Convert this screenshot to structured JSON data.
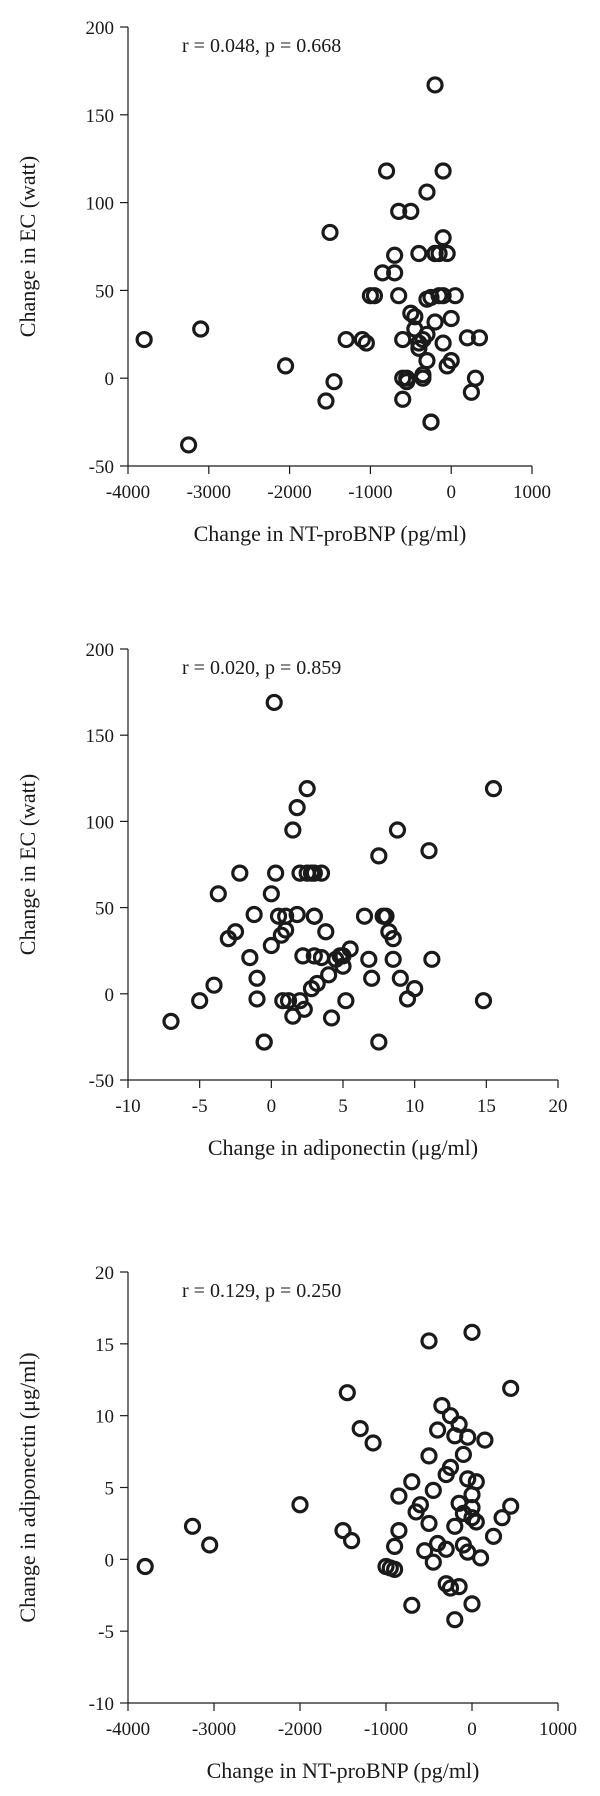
{
  "chart_data": [
    {
      "type": "scatter",
      "annotation": "r = 0.048, p = 0.668",
      "xlabel": "Change in NT-proBNP (pg/ml)",
      "ylabel": "Change in EC (watt)",
      "xlim": [
        -4000,
        1000
      ],
      "ylim": [
        -50,
        200
      ],
      "xticks": [
        -4000,
        -3000,
        -2000,
        -1000,
        0,
        1000
      ],
      "yticks": [
        -50,
        0,
        50,
        100,
        150,
        200
      ],
      "grid": false,
      "series": [
        {
          "x": [
            -3800,
            -3250,
            -3100,
            -2050,
            -1550,
            -1500,
            -1450,
            -1300,
            -1100,
            -1050,
            -1000,
            -950,
            -850,
            -800,
            -700,
            -700,
            -650,
            -650,
            -600,
            -600,
            -550,
            -550,
            -500,
            -450,
            -400,
            -400,
            -350,
            -350,
            -300,
            -300,
            -300,
            -250,
            -250,
            -200,
            -200,
            -200,
            -150,
            -150,
            -100,
            -100,
            -100,
            -100,
            -50,
            -50,
            0,
            0,
            50,
            200,
            250,
            300,
            350,
            -400,
            -300,
            -450,
            -350,
            -600,
            -500,
            -250,
            -200
          ],
          "y": [
            22,
            -38,
            28,
            7,
            -13,
            83,
            -2,
            22,
            22,
            20,
            47,
            47,
            60,
            118,
            70,
            60,
            95,
            47,
            22,
            0,
            0,
            -2,
            95,
            35,
            20,
            71,
            22,
            0,
            106,
            45,
            25,
            -25,
            -25,
            167,
            71,
            32,
            47,
            71,
            80,
            118,
            47,
            20,
            7,
            71,
            34,
            10,
            47,
            23,
            -8,
            0,
            23,
            17,
            10,
            28,
            2,
            -12,
            37,
            46,
            71
          ]
        }
      ]
    },
    {
      "type": "scatter",
      "annotation": "r = 0.020, p = 0.859",
      "xlabel": "Change in adiponectin (μg/ml)",
      "ylabel": "Change in EC (watt)",
      "xlim": [
        -10,
        20
      ],
      "ylim": [
        -50,
        200
      ],
      "xticks": [
        -10,
        -5,
        0,
        5,
        10,
        15,
        20
      ],
      "yticks": [
        -50,
        0,
        50,
        100,
        150,
        200
      ],
      "grid": false,
      "series": [
        {
          "x": [
            -7,
            -5,
            -4,
            -3.7,
            -3,
            -2.5,
            -2.2,
            -1.5,
            -1.2,
            -1,
            -1,
            -0.5,
            -0.5,
            0,
            0,
            0.2,
            0.3,
            0.5,
            0.7,
            0.8,
            1,
            1,
            1.2,
            1.5,
            1.5,
            1.8,
            1.8,
            2,
            2,
            2.2,
            2.3,
            2.5,
            2.5,
            2.8,
            2.8,
            3,
            3,
            3,
            3,
            3.2,
            3.5,
            3.5,
            3.8,
            4,
            4.2,
            4.5,
            4.8,
            5,
            5,
            5.2,
            5.5,
            6.5,
            6.8,
            7,
            7.5,
            7.5,
            7.8,
            8,
            8.2,
            8.5,
            8.5,
            8.8,
            9,
            9.5,
            10,
            11,
            11.2,
            14.8,
            15.5
          ],
          "y": [
            -16,
            -4,
            5,
            58,
            32,
            36,
            70,
            21,
            46,
            9,
            -3,
            -28,
            -28,
            58,
            28,
            169,
            70,
            45,
            34,
            -4,
            37,
            45,
            -4,
            -13,
            95,
            108,
            46,
            -4,
            70,
            22,
            -9,
            70,
            119,
            3,
            70,
            45,
            70,
            45,
            22,
            6,
            21,
            70,
            36,
            11,
            -14,
            20,
            22,
            22,
            16,
            -4,
            26,
            45,
            20,
            9,
            -28,
            80,
            45,
            45,
            36,
            32,
            20,
            95,
            9,
            -3,
            3,
            83,
            20,
            -4,
            119
          ]
        }
      ]
    },
    {
      "type": "scatter",
      "annotation": "r = 0.129, p = 0.250",
      "xlabel": "Change in NT-proBNP (pg/ml)",
      "ylabel": "Change in adiponectin (μg/ml)",
      "xlim": [
        -4000,
        1000
      ],
      "ylim": [
        -10,
        20
      ],
      "xticks": [
        -4000,
        -3000,
        -2000,
        -1000,
        0,
        1000
      ],
      "yticks": [
        -10,
        -5,
        0,
        5,
        10,
        15,
        20
      ],
      "grid": false,
      "series": [
        {
          "x": [
            -3800,
            -3250,
            -3050,
            -2000,
            -1500,
            -1450,
            -1400,
            -1300,
            -1150,
            -1000,
            -950,
            -900,
            -900,
            -850,
            -850,
            -700,
            -700,
            -650,
            -600,
            -550,
            -500,
            -500,
            -500,
            -450,
            -450,
            -400,
            -400,
            -350,
            -300,
            -300,
            -250,
            -250,
            -250,
            -200,
            -200,
            -200,
            -150,
            -150,
            -150,
            -100,
            -100,
            -100,
            -50,
            -50,
            -50,
            0,
            0,
            0,
            0,
            50,
            50,
            100,
            150,
            250,
            350,
            450,
            450,
            0,
            -300
          ],
          "y": [
            -0.5,
            2.3,
            1,
            3.8,
            2,
            11.6,
            1.3,
            9.1,
            8.1,
            -0.5,
            -0.6,
            0.9,
            -0.7,
            2,
            4.4,
            5.4,
            -3.2,
            3.3,
            3.8,
            0.6,
            7.2,
            15.2,
            2.5,
            4.8,
            -0.2,
            9,
            1.1,
            10.7,
            5.9,
            0.7,
            10,
            6.4,
            -2,
            -4.2,
            2.3,
            8.6,
            3.9,
            -1.9,
            9.4,
            7.3,
            3.2,
            1,
            8.5,
            5.6,
            0.5,
            3.6,
            2.9,
            15.8,
            -3.1,
            5.4,
            2.6,
            0.1,
            8.3,
            1.6,
            2.9,
            3.7,
            11.9,
            4.5,
            -1.7
          ]
        }
      ]
    }
  ]
}
